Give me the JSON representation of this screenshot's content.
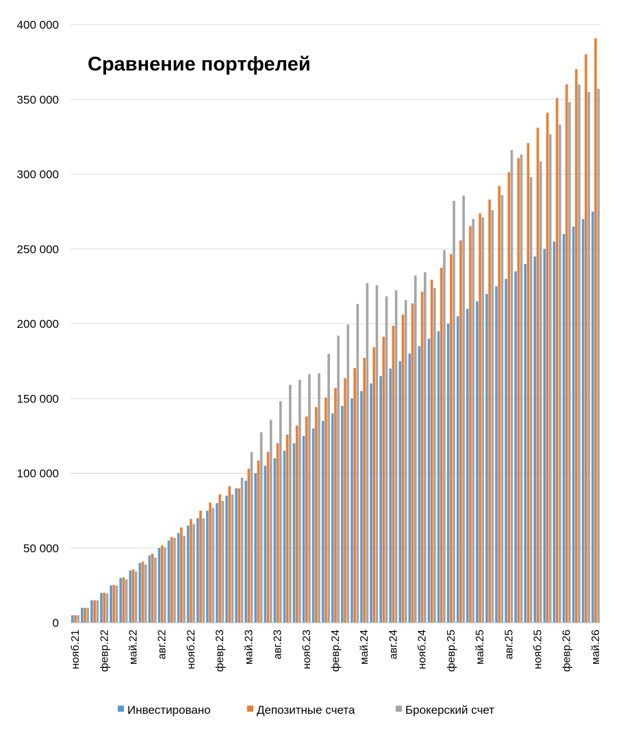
{
  "chart_data": {
    "type": "bar",
    "title": "Сравнение портфелей",
    "xlabel": "",
    "ylabel": "",
    "ylim": [
      0,
      400000
    ],
    "yticks": [
      0,
      50000,
      100000,
      150000,
      200000,
      250000,
      300000,
      350000,
      400000
    ],
    "ytick_labels": [
      "0",
      "50 000",
      "100 000",
      "150 000",
      "200 000",
      "250 000",
      "300 000",
      "350 000",
      "400 000"
    ],
    "grid": true,
    "legend_position": "bottom",
    "categories": [
      "нояб.21",
      "дек.21",
      "янв.22",
      "февр.22",
      "март.22",
      "апр.22",
      "май.22",
      "июн.22",
      "июл.22",
      "авг.22",
      "сент.22",
      "окт.22",
      "нояб.22",
      "дек.22",
      "янв.23",
      "февр.23",
      "март.23",
      "апр.23",
      "май.23",
      "июн.23",
      "июл.23",
      "авг.23",
      "сент.23",
      "окт.23",
      "нояб.23",
      "дек.23",
      "янв.24",
      "февр.24",
      "март.24",
      "апр.24",
      "май.24",
      "июн.24",
      "июл.24",
      "авг.24",
      "сент.24",
      "окт.24",
      "нояб.24",
      "дек.24",
      "янв.25",
      "февр.25",
      "март.25",
      "апр.25",
      "май.25",
      "июн.25",
      "июл.25",
      "авг.25",
      "сент.25",
      "окт.25",
      "нояб.25",
      "дек.25",
      "янв.26",
      "февр.26",
      "март.26",
      "апр.26",
      "май.26"
    ],
    "tick_labels": [
      "нояб.21",
      "февр.22",
      "май.22",
      "авг.22",
      "нояб.22",
      "февр.23",
      "май.23",
      "авг.23",
      "нояб.23",
      "февр.24",
      "май.24",
      "авг.24",
      "нояб.24",
      "февр.25",
      "май.25",
      "авг.25",
      "нояб.25",
      "февр.26",
      "май.26"
    ],
    "series": [
      {
        "name": "Инвестировано",
        "color": "#5b9bd5",
        "values": [
          5000,
          10000,
          15000,
          20000,
          25000,
          30000,
          35000,
          40000,
          45000,
          50000,
          55000,
          60000,
          65000,
          70000,
          75000,
          80000,
          85000,
          90000,
          95000,
          100000,
          105000,
          110000,
          115000,
          120000,
          125000,
          130000,
          135000,
          140000,
          145000,
          150000,
          155000,
          160000,
          165000,
          170000,
          175000,
          180000,
          185000,
          190000,
          195000,
          200000,
          205000,
          210000,
          215000,
          220000,
          225000,
          230000,
          235000,
          240000,
          245000,
          250000,
          255000,
          260000,
          265000,
          270000,
          275000
        ]
      },
      {
        "name": "Депозитные счета",
        "color": "#ed7d31",
        "values": [
          5000,
          10000,
          15000,
          20100,
          25200,
          30400,
          35600,
          40900,
          46200,
          51700,
          57300,
          63800,
          69400,
          75000,
          80400,
          85900,
          91400,
          89900,
          103000,
          108600,
          114300,
          120000,
          125900,
          131900,
          138000,
          144300,
          150600,
          157000,
          163600,
          170300,
          177100,
          184200,
          191300,
          198600,
          206100,
          213600,
          221400,
          229400,
          237500,
          246600,
          255700,
          265200,
          273900,
          283000,
          292100,
          301300,
          310800,
          320800,
          331100,
          341100,
          350900,
          360100,
          370200,
          380200,
          390800
        ]
      },
      {
        "name": "Брокерский счет",
        "color": "#a5a5a5",
        "values": [
          5000,
          10000,
          15000,
          19600,
          24800,
          29000,
          34300,
          39000,
          43600,
          50500,
          56700,
          58200,
          66000,
          69800,
          76700,
          81500,
          85800,
          97100,
          114100,
          127400,
          135700,
          148200,
          159200,
          162500,
          166300,
          166800,
          179900,
          192000,
          199400,
          213200,
          227200,
          225800,
          218300,
          222400,
          215800,
          232200,
          234400,
          223900,
          249200,
          282200,
          285700,
          270100,
          271000,
          276000,
          286000,
          316200,
          313200,
          298000,
          308500,
          326800,
          333200,
          348200,
          360000,
          355000,
          357100
        ]
      }
    ]
  }
}
